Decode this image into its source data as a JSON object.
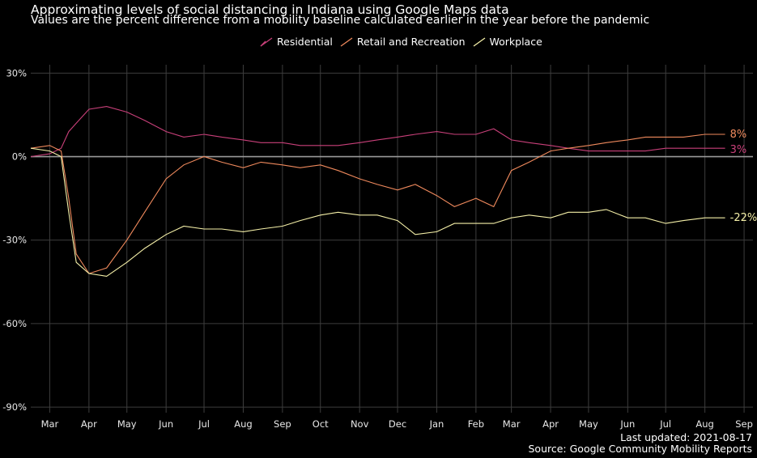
{
  "chart_data": {
    "type": "line",
    "title": "Approximating levels of social distancing in Indiana using Google Maps data",
    "subtitle": "Values are the percent difference from a mobility baseline calculated earlier in the year before the pandemic",
    "xlabel": "",
    "ylabel": "",
    "y_ticks": [
      "30%",
      "0%",
      "-30%",
      "-60%",
      "-90%"
    ],
    "y_tick_values": [
      30,
      0,
      -30,
      -60,
      -90
    ],
    "ylim": [
      -92,
      33
    ],
    "x_ticks": [
      "Mar",
      "Apr",
      "May",
      "Jun",
      "Jul",
      "Aug",
      "Sep",
      "Oct",
      "Nov",
      "Dec",
      "Jan",
      "Feb",
      "Mar",
      "Apr",
      "May",
      "Jun",
      "Jul",
      "Aug",
      "Sep"
    ],
    "x_range": [
      "2020-02-15",
      "2021-09-08"
    ],
    "grid": true,
    "legend_position": "top",
    "series": [
      {
        "name": "Residential",
        "color": "#c9407a",
        "end_label": "3%",
        "points": [
          [
            "2020-02-15",
            0
          ],
          [
            "2020-03-01",
            1
          ],
          [
            "2020-03-10",
            3
          ],
          [
            "2020-03-16",
            9
          ],
          [
            "2020-03-22",
            12
          ],
          [
            "2020-04-01",
            17
          ],
          [
            "2020-04-15",
            18
          ],
          [
            "2020-05-01",
            16
          ],
          [
            "2020-05-15",
            13
          ],
          [
            "2020-06-01",
            9
          ],
          [
            "2020-06-15",
            7
          ],
          [
            "2020-07-01",
            8
          ],
          [
            "2020-07-15",
            7
          ],
          [
            "2020-08-01",
            6
          ],
          [
            "2020-08-15",
            5
          ],
          [
            "2020-09-01",
            5
          ],
          [
            "2020-09-15",
            4
          ],
          [
            "2020-10-01",
            4
          ],
          [
            "2020-10-15",
            4
          ],
          [
            "2020-11-01",
            5
          ],
          [
            "2020-11-15",
            6
          ],
          [
            "2020-12-01",
            7
          ],
          [
            "2020-12-15",
            8
          ],
          [
            "2021-01-01",
            9
          ],
          [
            "2021-01-15",
            8
          ],
          [
            "2021-02-01",
            8
          ],
          [
            "2021-02-15",
            10
          ],
          [
            "2021-03-01",
            6
          ],
          [
            "2021-03-15",
            5
          ],
          [
            "2021-04-01",
            4
          ],
          [
            "2021-04-15",
            3
          ],
          [
            "2021-05-01",
            2
          ],
          [
            "2021-05-15",
            2
          ],
          [
            "2021-06-01",
            2
          ],
          [
            "2021-06-15",
            2
          ],
          [
            "2021-07-01",
            3
          ],
          [
            "2021-07-15",
            3
          ],
          [
            "2021-08-01",
            3
          ],
          [
            "2021-08-17",
            3
          ]
        ]
      },
      {
        "name": "Retail and Recreation",
        "color": "#f08a5d",
        "end_label": "8%",
        "points": [
          [
            "2020-02-15",
            3
          ],
          [
            "2020-03-01",
            4
          ],
          [
            "2020-03-10",
            2
          ],
          [
            "2020-03-16",
            -15
          ],
          [
            "2020-03-22",
            -35
          ],
          [
            "2020-04-01",
            -42
          ],
          [
            "2020-04-15",
            -40
          ],
          [
            "2020-05-01",
            -30
          ],
          [
            "2020-05-15",
            -20
          ],
          [
            "2020-06-01",
            -8
          ],
          [
            "2020-06-15",
            -3
          ],
          [
            "2020-07-01",
            0
          ],
          [
            "2020-07-15",
            -2
          ],
          [
            "2020-08-01",
            -4
          ],
          [
            "2020-08-15",
            -2
          ],
          [
            "2020-09-01",
            -3
          ],
          [
            "2020-09-15",
            -4
          ],
          [
            "2020-10-01",
            -3
          ],
          [
            "2020-10-15",
            -5
          ],
          [
            "2020-11-01",
            -8
          ],
          [
            "2020-11-15",
            -10
          ],
          [
            "2020-12-01",
            -12
          ],
          [
            "2020-12-15",
            -10
          ],
          [
            "2021-01-01",
            -14
          ],
          [
            "2021-01-15",
            -18
          ],
          [
            "2021-02-01",
            -15
          ],
          [
            "2021-02-15",
            -18
          ],
          [
            "2021-03-01",
            -5
          ],
          [
            "2021-03-15",
            -2
          ],
          [
            "2021-04-01",
            2
          ],
          [
            "2021-04-15",
            3
          ],
          [
            "2021-05-01",
            4
          ],
          [
            "2021-05-15",
            5
          ],
          [
            "2021-06-01",
            6
          ],
          [
            "2021-06-15",
            7
          ],
          [
            "2021-07-01",
            7
          ],
          [
            "2021-07-15",
            7
          ],
          [
            "2021-08-01",
            8
          ],
          [
            "2021-08-17",
            8
          ]
        ]
      },
      {
        "name": "Workplace",
        "color": "#f5f0a8",
        "end_label": "-22%",
        "points": [
          [
            "2020-02-15",
            3
          ],
          [
            "2020-03-01",
            2
          ],
          [
            "2020-03-10",
            0
          ],
          [
            "2020-03-16",
            -20
          ],
          [
            "2020-03-22",
            -38
          ],
          [
            "2020-04-01",
            -42
          ],
          [
            "2020-04-15",
            -43
          ],
          [
            "2020-05-01",
            -38
          ],
          [
            "2020-05-15",
            -33
          ],
          [
            "2020-06-01",
            -28
          ],
          [
            "2020-06-15",
            -25
          ],
          [
            "2020-07-01",
            -26
          ],
          [
            "2020-07-15",
            -26
          ],
          [
            "2020-08-01",
            -27
          ],
          [
            "2020-08-15",
            -26
          ],
          [
            "2020-09-01",
            -25
          ],
          [
            "2020-09-15",
            -23
          ],
          [
            "2020-10-01",
            -21
          ],
          [
            "2020-10-15",
            -20
          ],
          [
            "2020-11-01",
            -21
          ],
          [
            "2020-11-15",
            -21
          ],
          [
            "2020-12-01",
            -23
          ],
          [
            "2020-12-15",
            -28
          ],
          [
            "2021-01-01",
            -27
          ],
          [
            "2021-01-15",
            -24
          ],
          [
            "2021-02-01",
            -24
          ],
          [
            "2021-02-15",
            -24
          ],
          [
            "2021-03-01",
            -22
          ],
          [
            "2021-03-15",
            -21
          ],
          [
            "2021-04-01",
            -22
          ],
          [
            "2021-04-15",
            -20
          ],
          [
            "2021-05-01",
            -20
          ],
          [
            "2021-05-15",
            -19
          ],
          [
            "2021-06-01",
            -22
          ],
          [
            "2021-06-15",
            -22
          ],
          [
            "2021-07-01",
            -24
          ],
          [
            "2021-07-15",
            -23
          ],
          [
            "2021-08-01",
            -22
          ],
          [
            "2021-08-17",
            -22
          ]
        ]
      }
    ]
  },
  "footer": {
    "last_updated": "Last updated: 2021-08-17",
    "source": "Source: Google Community Mobility Reports"
  }
}
